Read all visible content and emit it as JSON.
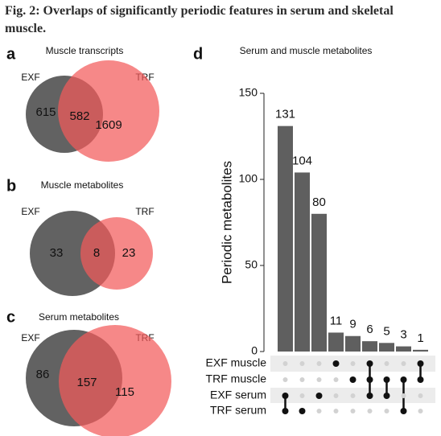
{
  "figure_title": "Fig. 2: Overlaps of significantly periodic features in serum and skeletal muscle.",
  "chart_data": [
    {
      "type": "venn",
      "panel": "a",
      "title": "Muscle transcripts",
      "sets": [
        "EXF",
        "TRF"
      ],
      "colors": [
        "#5a5a5a",
        "#f25a5a"
      ],
      "values": [
        615,
        582,
        1609
      ]
    },
    {
      "type": "venn",
      "panel": "b",
      "title": "Muscle metabolites",
      "sets": [
        "EXF",
        "TRF"
      ],
      "colors": [
        "#5a5a5a",
        "#f25a5a"
      ],
      "values": [
        33,
        8,
        23
      ]
    },
    {
      "type": "venn",
      "panel": "c",
      "title": "Serum metabolites",
      "sets": [
        "EXF",
        "TRF"
      ],
      "colors": [
        "#5a5a5a",
        "#f25a5a"
      ],
      "values": [
        86,
        157,
        115
      ]
    },
    {
      "type": "upset",
      "panel": "d",
      "title": "Serum and muscle metabolites",
      "ylabel": "Periodic metabolites",
      "color": "#5f5f5f",
      "values": [
        131,
        104,
        80,
        11,
        9,
        6,
        5,
        3,
        1
      ],
      "ylim": [
        0,
        150
      ],
      "yticks": [
        0,
        50,
        100,
        150
      ],
      "sets": [
        "EXF muscle",
        "TRF muscle",
        "EXF serum",
        "TRF serum"
      ],
      "memberships": [
        [
          false,
          false,
          true,
          true
        ],
        [
          false,
          false,
          false,
          true
        ],
        [
          false,
          false,
          true,
          false
        ],
        [
          true,
          false,
          false,
          false
        ],
        [
          false,
          true,
          false,
          false
        ],
        [
          true,
          true,
          true,
          false
        ],
        [
          false,
          true,
          true,
          false
        ],
        [
          false,
          true,
          false,
          true
        ],
        [
          true,
          true,
          false,
          false
        ]
      ]
    }
  ]
}
